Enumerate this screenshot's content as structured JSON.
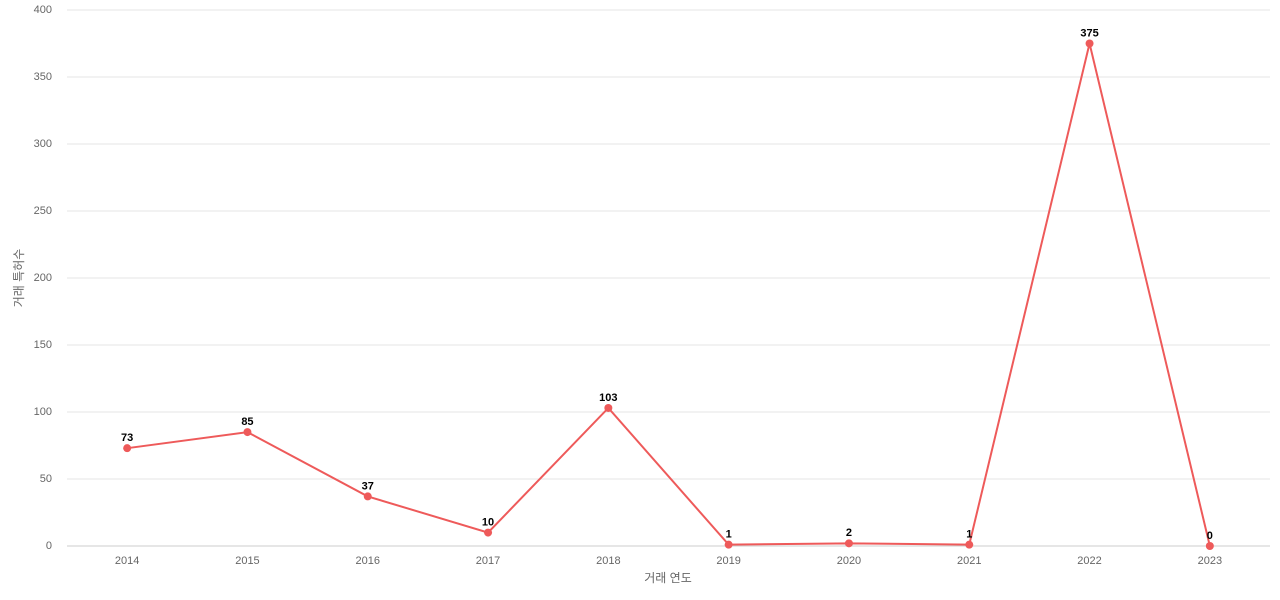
{
  "chart_data": {
    "type": "line",
    "x_label": "거래 연도",
    "y_label": "거래 특허수",
    "categories": [
      "2014",
      "2015",
      "2016",
      "2017",
      "2018",
      "2019",
      "2020",
      "2021",
      "2022",
      "2023"
    ],
    "values": [
      73,
      85,
      37,
      10,
      103,
      1,
      2,
      1,
      375,
      0
    ],
    "color": "#ee5a5a",
    "ylim": [
      0,
      400
    ],
    "yticks": [
      0,
      50,
      100,
      150,
      200,
      250,
      300,
      350,
      400
    ],
    "grid": true,
    "data_labels": true
  }
}
